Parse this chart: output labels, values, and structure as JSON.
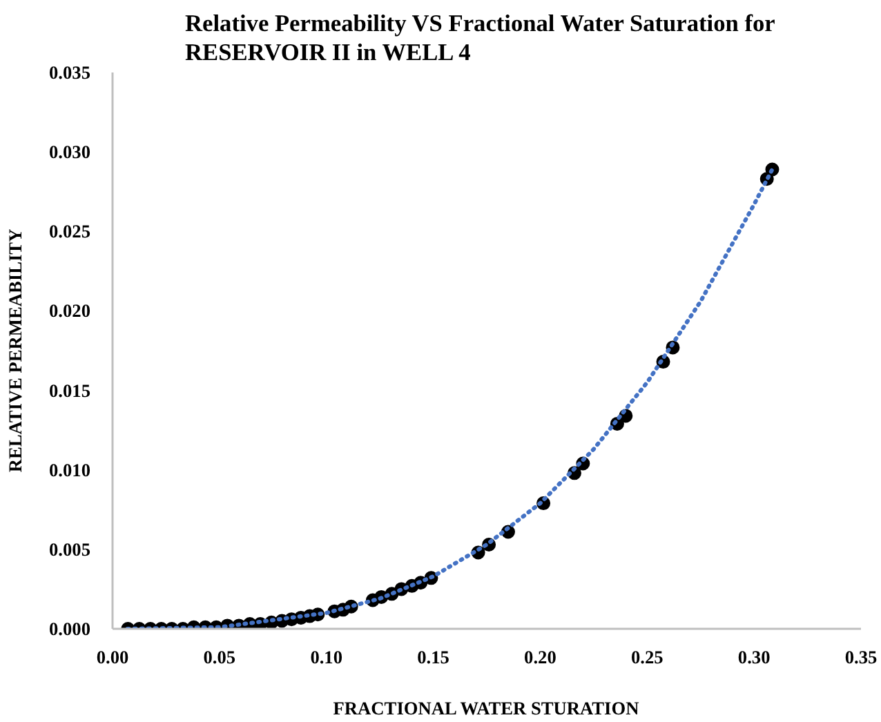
{
  "chart_data": {
    "type": "scatter",
    "title": "Relative Permeability VS  Fractional Water Saturation  for\nRESERVOIR II in WELL 4",
    "xlabel": "FRACTIONAL WATER STURATION",
    "ylabel": "RELATIVE PERMEABILITY",
    "xlim": [
      0,
      0.35
    ],
    "ylim": [
      0,
      0.035
    ],
    "xticks": [
      {
        "value": 0,
        "label": "0.00"
      },
      {
        "value": 0.05,
        "label": "0.05"
      },
      {
        "value": 0.1,
        "label": "0.10"
      },
      {
        "value": 0.15,
        "label": "0.15"
      },
      {
        "value": 0.2,
        "label": "0.20"
      },
      {
        "value": 0.25,
        "label": "0.25"
      },
      {
        "value": 0.3,
        "label": "0.30"
      },
      {
        "value": 0.35,
        "label": "0.35"
      }
    ],
    "yticks": [
      {
        "value": 0,
        "label": "0.000"
      },
      {
        "value": 0.005,
        "label": "0.005"
      },
      {
        "value": 0.01,
        "label": "0.010"
      },
      {
        "value": 0.015,
        "label": "0.015"
      },
      {
        "value": 0.02,
        "label": "0.020"
      },
      {
        "value": 0.025,
        "label": "0.025"
      },
      {
        "value": 0.03,
        "label": "0.030"
      },
      {
        "value": 0.035,
        "label": "0.035"
      }
    ],
    "grid": false,
    "series": [
      {
        "color": "#000000",
        "marker": "circle",
        "x": [
          0.0072,
          0.0125,
          0.0177,
          0.0228,
          0.0277,
          0.0329,
          0.038,
          0.0434,
          0.0485,
          0.0537,
          0.0591,
          0.0642,
          0.0691,
          0.0743,
          0.0792,
          0.0837,
          0.0881,
          0.0922,
          0.096,
          0.1038,
          0.1078,
          0.1116,
          0.1217,
          0.1257,
          0.1306,
          0.1351,
          0.14,
          0.1441,
          0.149,
          0.171,
          0.176,
          0.185,
          0.2015,
          0.216,
          0.22,
          0.236,
          0.24,
          0.2575,
          0.262,
          0.306,
          0.3085
        ],
        "values": [
          0,
          0,
          0,
          0,
          0,
          0,
          0.0001,
          0.0001,
          0.0001,
          0.0002,
          0.0002,
          0.0003,
          0.0003,
          0.0004,
          0.0005,
          0.0006,
          0.0007,
          0.0008,
          0.0009,
          0.0011,
          0.0012,
          0.0014,
          0.0018,
          0.002,
          0.0022,
          0.0025,
          0.0027,
          0.0029,
          0.0032,
          0.0048,
          0.0053,
          0.0061,
          0.0079,
          0.0098,
          0.0104,
          0.0129,
          0.0134,
          0.0168,
          0.0177,
          0.0283,
          0.0289
        ]
      },
      {
        "type": "line",
        "color": "#4472c4",
        "line_style": "dotted",
        "x": [
          0.007,
          0.05,
          0.1,
          0.125,
          0.15,
          0.175,
          0.2,
          0.225,
          0.25,
          0.275,
          0.3,
          0.3085
        ],
        "values": [
          0,
          0.0001,
          0.001,
          0.0019,
          0.0033,
          0.0053,
          0.0079,
          0.0113,
          0.0155,
          0.0206,
          0.0267,
          0.0289
        ]
      }
    ]
  }
}
